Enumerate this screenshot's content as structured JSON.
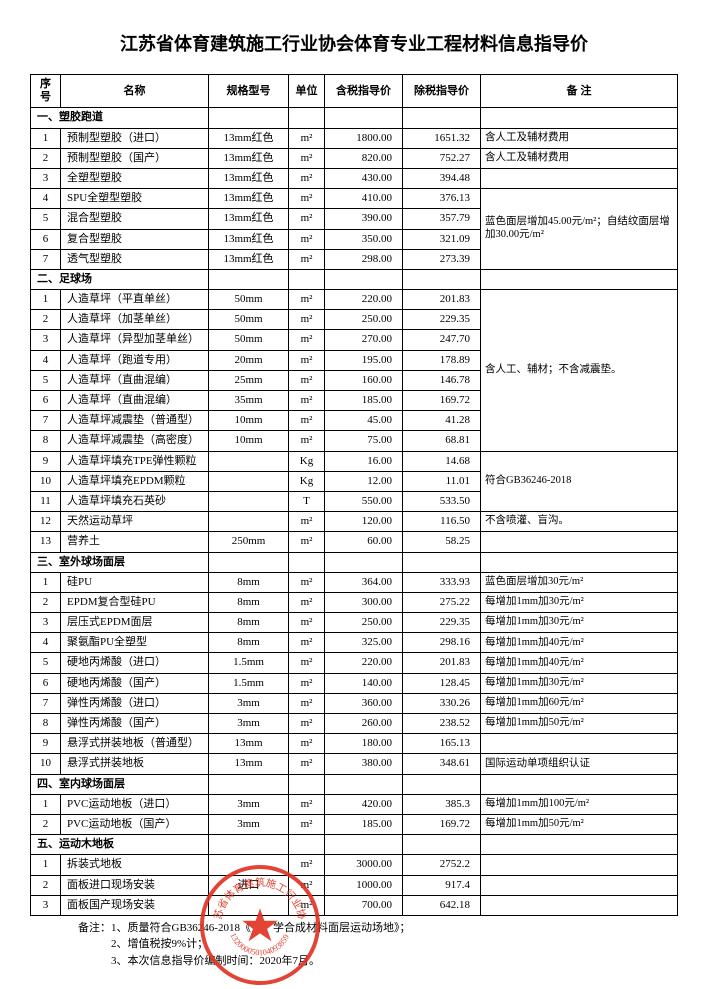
{
  "title": "江苏省体育建筑施工行业协会体育专业工程材料信息指导价",
  "columns": [
    "序号",
    "名称",
    "规格型号",
    "单位",
    "含税指导价",
    "除税指导价",
    "备 注"
  ],
  "sections": [
    {
      "header": "一、塑胶跑道",
      "note_groups": [
        {
          "start": 0,
          "end": 0,
          "note": "含人工及辅材费用"
        },
        {
          "start": 1,
          "end": 1,
          "note": "含人工及辅材费用"
        },
        {
          "start": 2,
          "end": 2,
          "note": ""
        },
        {
          "start": 3,
          "end": 6,
          "note": "蓝色面层增加45.00元/m²；自结纹面层增加30.00元/m²"
        }
      ],
      "rows": [
        {
          "idx": "1",
          "name": "预制型塑胶（进口）",
          "spec": "13mm红色",
          "unit": "m²",
          "p1": "1800.00",
          "p2": "1651.32"
        },
        {
          "idx": "2",
          "name": "预制型塑胶（国产）",
          "spec": "13mm红色",
          "unit": "m²",
          "p1": "820.00",
          "p2": "752.27"
        },
        {
          "idx": "3",
          "name": "全塑型塑胶",
          "spec": "13mm红色",
          "unit": "m²",
          "p1": "430.00",
          "p2": "394.48"
        },
        {
          "idx": "4",
          "name": "SPU全塑型塑胶",
          "spec": "13mm红色",
          "unit": "m²",
          "p1": "410.00",
          "p2": "376.13"
        },
        {
          "idx": "5",
          "name": "混合型塑胶",
          "spec": "13mm红色",
          "unit": "m²",
          "p1": "390.00",
          "p2": "357.79"
        },
        {
          "idx": "6",
          "name": "复合型塑胶",
          "spec": "13mm红色",
          "unit": "m²",
          "p1": "350.00",
          "p2": "321.09"
        },
        {
          "idx": "7",
          "name": "透气型塑胶",
          "spec": "13mm红色",
          "unit": "m²",
          "p1": "298.00",
          "p2": "273.39"
        }
      ]
    },
    {
      "header": "二、足球场",
      "note_groups": [
        {
          "start": 0,
          "end": 7,
          "note": "含人工、辅材；不含减震垫。"
        },
        {
          "start": 8,
          "end": 10,
          "note": "符合GB36246-2018"
        },
        {
          "start": 11,
          "end": 11,
          "note": "不含喷灌、盲沟。"
        },
        {
          "start": 12,
          "end": 12,
          "note": ""
        }
      ],
      "rows": [
        {
          "idx": "1",
          "name": "人造草坪（平直单丝）",
          "spec": "50mm",
          "unit": "m²",
          "p1": "220.00",
          "p2": "201.83"
        },
        {
          "idx": "2",
          "name": "人造草坪（加茎单丝）",
          "spec": "50mm",
          "unit": "m²",
          "p1": "250.00",
          "p2": "229.35"
        },
        {
          "idx": "3",
          "name": "人造草坪（异型加茎单丝）",
          "spec": "50mm",
          "unit": "m²",
          "p1": "270.00",
          "p2": "247.70"
        },
        {
          "idx": "4",
          "name": "人造草坪（跑道专用）",
          "spec": "20mm",
          "unit": "m²",
          "p1": "195.00",
          "p2": "178.89"
        },
        {
          "idx": "5",
          "name": "人造草坪（直曲混编）",
          "spec": "25mm",
          "unit": "m²",
          "p1": "160.00",
          "p2": "146.78"
        },
        {
          "idx": "6",
          "name": "人造草坪（直曲混编）",
          "spec": "35mm",
          "unit": "m²",
          "p1": "185.00",
          "p2": "169.72"
        },
        {
          "idx": "7",
          "name": "人造草坪减震垫（普通型）",
          "spec": "10mm",
          "unit": "m²",
          "p1": "45.00",
          "p2": "41.28"
        },
        {
          "idx": "8",
          "name": "人造草坪减震垫（高密度）",
          "spec": "10mm",
          "unit": "m²",
          "p1": "75.00",
          "p2": "68.81"
        },
        {
          "idx": "9",
          "name": "人造草坪填充TPE弹性颗粒",
          "spec": "",
          "unit": "Kg",
          "p1": "16.00",
          "p2": "14.68"
        },
        {
          "idx": "10",
          "name": "人造草坪填充EPDM颗粒",
          "spec": "",
          "unit": "Kg",
          "p1": "12.00",
          "p2": "11.01"
        },
        {
          "idx": "11",
          "name": "人造草坪填充石英砂",
          "spec": "",
          "unit": "T",
          "p1": "550.00",
          "p2": "533.50"
        },
        {
          "idx": "12",
          "name": "天然运动草坪",
          "spec": "",
          "unit": "m²",
          "p1": "120.00",
          "p2": "116.50"
        },
        {
          "idx": "13",
          "name": "营养土",
          "spec": "250mm",
          "unit": "m²",
          "p1": "60.00",
          "p2": "58.25"
        }
      ]
    },
    {
      "header": "三、室外球场面层",
      "note_groups": [
        {
          "start": 0,
          "end": 0,
          "note": "蓝色面层增加30元/m²"
        },
        {
          "start": 1,
          "end": 1,
          "note": "每增加1mm加30元/m²"
        },
        {
          "start": 2,
          "end": 2,
          "note": "每增加1mm加30元/m²"
        },
        {
          "start": 3,
          "end": 3,
          "note": "每增加1mm加40元/m²"
        },
        {
          "start": 4,
          "end": 4,
          "note": "每增加1mm加40元/m²"
        },
        {
          "start": 5,
          "end": 5,
          "note": "每增加1mm加30元/m²"
        },
        {
          "start": 6,
          "end": 6,
          "note": "每增加1mm加60元/m²"
        },
        {
          "start": 7,
          "end": 7,
          "note": "每增加1mm加50元/m²"
        },
        {
          "start": 8,
          "end": 8,
          "note": ""
        },
        {
          "start": 9,
          "end": 9,
          "note": "国际运动单项组织认证"
        }
      ],
      "rows": [
        {
          "idx": "1",
          "name": "硅PU",
          "spec": "8mm",
          "unit": "m²",
          "p1": "364.00",
          "p2": "333.93"
        },
        {
          "idx": "2",
          "name": "EPDM复合型硅PU",
          "spec": "8mm",
          "unit": "m²",
          "p1": "300.00",
          "p2": "275.22"
        },
        {
          "idx": "3",
          "name": "层压式EPDM面层",
          "spec": "8mm",
          "unit": "m²",
          "p1": "250.00",
          "p2": "229.35"
        },
        {
          "idx": "4",
          "name": "聚氨酯PU全塑型",
          "spec": "8mm",
          "unit": "m²",
          "p1": "325.00",
          "p2": "298.16"
        },
        {
          "idx": "5",
          "name": "硬地丙烯酸（进口）",
          "spec": "1.5mm",
          "unit": "m²",
          "p1": "220.00",
          "p2": "201.83"
        },
        {
          "idx": "6",
          "name": "硬地丙烯酸（国产）",
          "spec": "1.5mm",
          "unit": "m²",
          "p1": "140.00",
          "p2": "128.45"
        },
        {
          "idx": "7",
          "name": "弹性丙烯酸（进口）",
          "spec": "3mm",
          "unit": "m²",
          "p1": "360.00",
          "p2": "330.26"
        },
        {
          "idx": "8",
          "name": "弹性丙烯酸（国产）",
          "spec": "3mm",
          "unit": "m²",
          "p1": "260.00",
          "p2": "238.52"
        },
        {
          "idx": "9",
          "name": "悬浮式拼装地板（普通型）",
          "spec": "13mm",
          "unit": "m²",
          "p1": "180.00",
          "p2": "165.13"
        },
        {
          "idx": "10",
          "name": "悬浮式拼装地板",
          "spec": "13mm",
          "unit": "m²",
          "p1": "380.00",
          "p2": "348.61"
        }
      ]
    },
    {
      "header": "四、室内球场面层",
      "note_groups": [
        {
          "start": 0,
          "end": 0,
          "note": "每增加1mm加100元/m²"
        },
        {
          "start": 1,
          "end": 1,
          "note": "每增加1mm加50元/m²"
        }
      ],
      "rows": [
        {
          "idx": "1",
          "name": "PVC运动地板（进口）",
          "spec": "3mm",
          "unit": "m²",
          "p1": "420.00",
          "p2": "385.3"
        },
        {
          "idx": "2",
          "name": "PVC运动地板（国产）",
          "spec": "3mm",
          "unit": "m²",
          "p1": "185.00",
          "p2": "169.72"
        }
      ]
    },
    {
      "header": "五、运动木地板",
      "note_groups": [
        {
          "start": 0,
          "end": 0,
          "note": ""
        },
        {
          "start": 1,
          "end": 1,
          "note": ""
        },
        {
          "start": 2,
          "end": 2,
          "note": ""
        }
      ],
      "rows": [
        {
          "idx": "1",
          "name": "拆装式地板",
          "spec": "",
          "unit": "m²",
          "p1": "3000.00",
          "p2": "2752.2"
        },
        {
          "idx": "2",
          "name": "面板进口现场安装",
          "spec": "进口",
          "unit": "m²",
          "p1": "1000.00",
          "p2": "917.4"
        },
        {
          "idx": "3",
          "name": "面板国产现场安装",
          "spec": "",
          "unit": "m²",
          "p1": "700.00",
          "p2": "642.18"
        }
      ]
    }
  ],
  "footnotes": [
    "备注：1、质量符合GB36246-2018《　　学合成材料面层运动场地》；",
    "　　　2、增值税按9%计；",
    "　　　3、本次信息指导价编制时间：2020年7月。"
  ],
  "stamp": {
    "top_text": "江苏省体育建筑施工行业协会",
    "code": "5132000050104093859O"
  }
}
